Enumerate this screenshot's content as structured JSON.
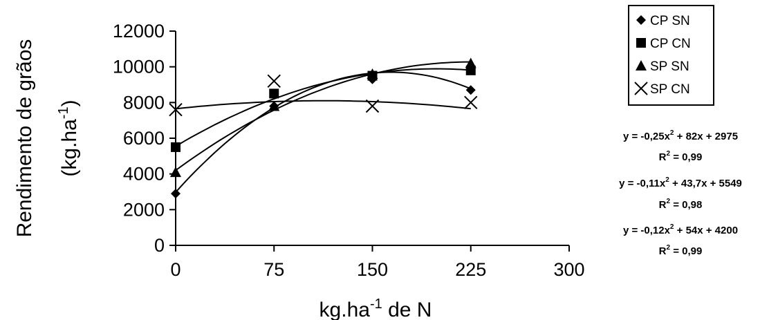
{
  "chart_data": {
    "type": "scatter",
    "xlabel": "kg.ha",
    "xlabel_sup": "-1",
    "xlabel_suffix": " de N",
    "ylabel_line1": "Rendimento de grãos",
    "ylabel_line2_prefix": "(kg.ha",
    "ylabel_line2_sup": "-1",
    "ylabel_line2_suffix": ")",
    "xlim": [
      0,
      300
    ],
    "ylim": [
      0,
      12000
    ],
    "x_ticks": [
      0,
      75,
      150,
      225,
      300
    ],
    "y_ticks": [
      0,
      2000,
      4000,
      6000,
      8000,
      10000,
      12000
    ],
    "x_tick_labels": [
      "0",
      "75",
      "150",
      "225",
      "300"
    ],
    "y_tick_labels": [
      "0",
      "2000",
      "4000",
      "6000",
      "8000",
      "10000",
      "12000"
    ],
    "grid": false,
    "legend_position": "top-right",
    "series": [
      {
        "name": "CP SN",
        "marker": "diamond",
        "x": [
          0,
          75,
          150,
          225
        ],
        "y": [
          2900,
          7800,
          9300,
          8700
        ]
      },
      {
        "name": "CP CN",
        "marker": "square",
        "x": [
          0,
          75,
          150,
          225
        ],
        "y": [
          5500,
          8500,
          9500,
          9800
        ]
      },
      {
        "name": "SP SN",
        "marker": "triangle",
        "x": [
          0,
          75,
          150,
          225
        ],
        "y": [
          4100,
          7800,
          9600,
          10200
        ]
      },
      {
        "name": "SP CN",
        "marker": "x",
        "x": [
          0,
          75,
          150,
          225
        ],
        "y": [
          7600,
          9200,
          7800,
          8000
        ]
      }
    ],
    "fit_curves": [
      {
        "a": -0.25,
        "b": 82,
        "c": 2975,
        "x_range": [
          0,
          225
        ]
      },
      {
        "a": -0.11,
        "b": 43.7,
        "c": 5549,
        "x_range": [
          0,
          225
        ]
      },
      {
        "a": -0.12,
        "b": 54,
        "c": 4200,
        "x_range": [
          0,
          225
        ]
      },
      {
        "a": -0.0355,
        "b": 8,
        "c": 7650,
        "x_range": [
          0,
          225
        ]
      }
    ],
    "equations": [
      {
        "eq": "y = -0,25x",
        "eq_sup": "2",
        "eq_rest": " + 82x + 2975",
        "r2": "R",
        "r2_sup": "2",
        "r2_rest": " = 0,99"
      },
      {
        "eq": "y = -0,11x",
        "eq_sup": "2",
        "eq_rest": " + 43,7x + 5549",
        "r2": "R",
        "r2_sup": "2",
        "r2_rest": " = 0,98"
      },
      {
        "eq": "y = -0,12x",
        "eq_sup": "2",
        "eq_rest": " + 54x + 4200",
        "r2": "R",
        "r2_sup": "2",
        "r2_rest": " = 0,99"
      }
    ]
  }
}
